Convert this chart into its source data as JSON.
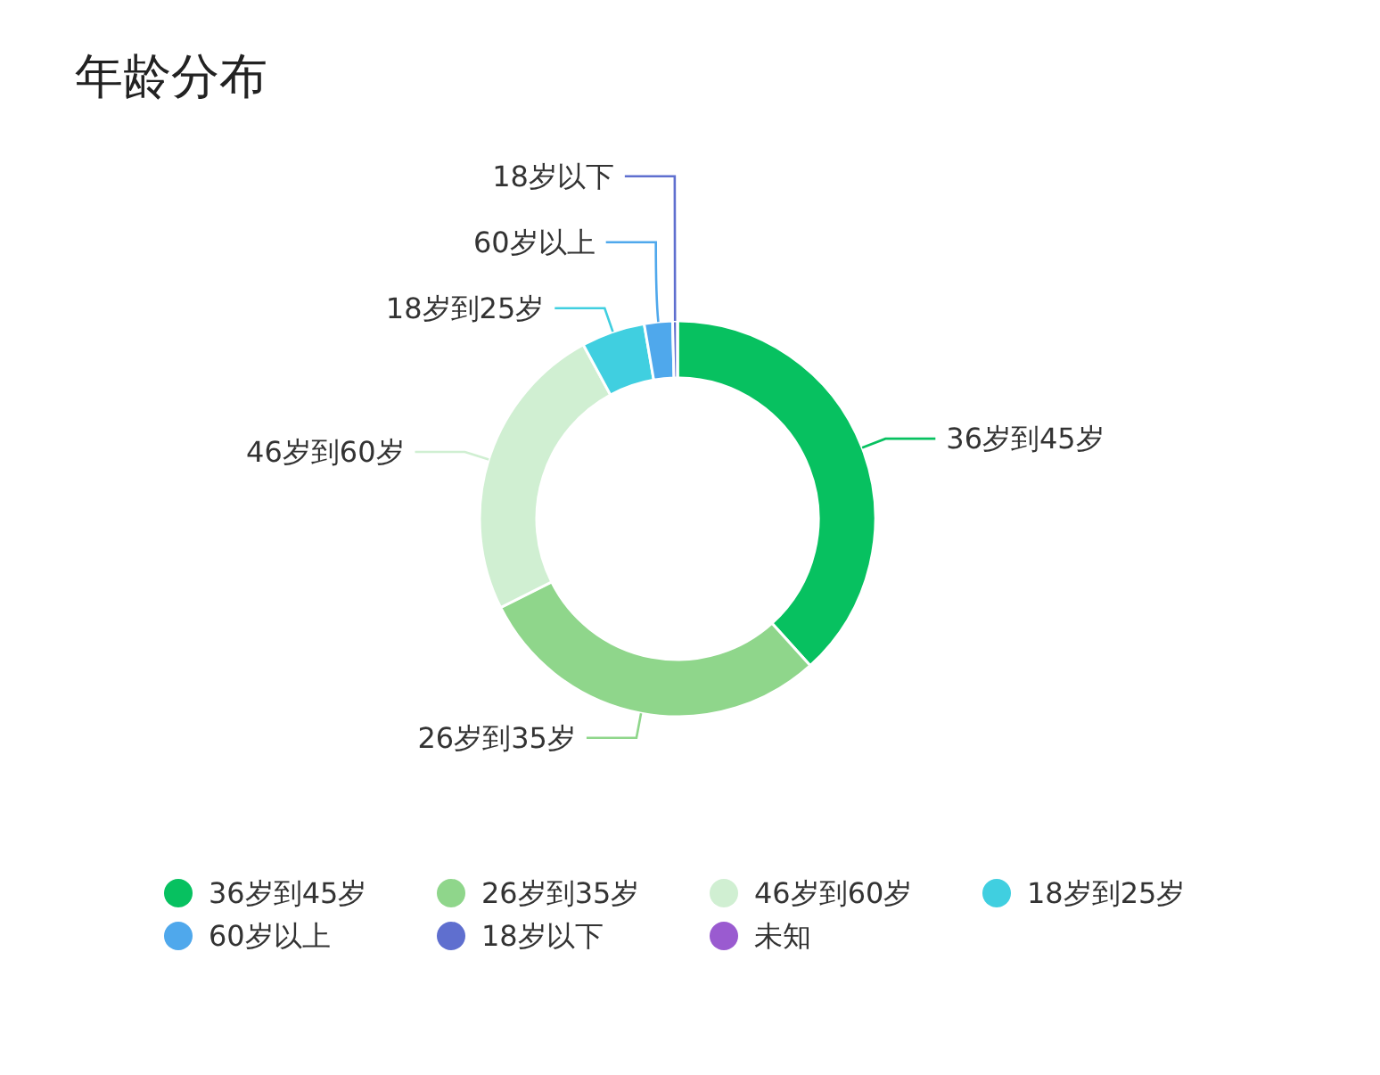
{
  "chart_data": {
    "type": "donut",
    "title": "年龄分布",
    "categories": [
      "36岁到45岁",
      "26岁到35岁",
      "46岁到60岁",
      "18岁到25岁",
      "60岁以上",
      "18岁以下",
      "未知"
    ],
    "values": [
      38.3,
      29.3,
      24.5,
      5.2,
      2.3,
      0.4,
      0
    ],
    "colors": [
      "#07c160",
      "#8fd68b",
      "#d0efd2",
      "#40cfe0",
      "#4fa8ec",
      "#5f6fcf",
      "#9a5bd0"
    ],
    "legend": "bottom"
  }
}
